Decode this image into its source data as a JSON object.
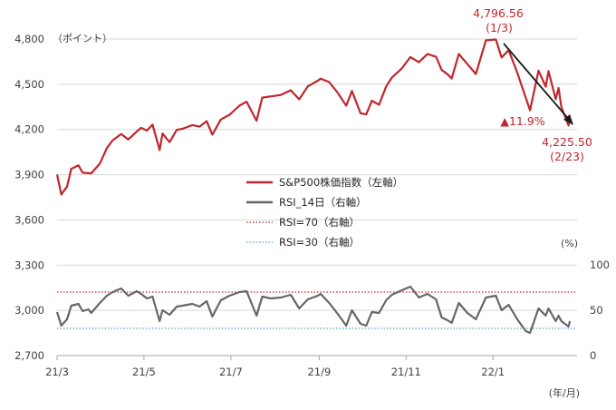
{
  "colors": {
    "sp500": "#c0262d",
    "rsi": "#666666",
    "rsi70": "#c0262d",
    "rsi30": "#4aa8c9",
    "grid": "#d9d9d9",
    "arrow": "#1a1a1a"
  },
  "chart_data": {
    "type": "line",
    "left_axis": {
      "unit_label": "（ポイント）",
      "ticks": [
        "4,800",
        "4,500",
        "4,200",
        "3,900",
        "3,600",
        "3,300",
        "3,000",
        "2,700"
      ],
      "range": [
        2700,
        4800
      ]
    },
    "right_axis": {
      "unit_label": "(%)",
      "ticks": [
        "100",
        "50",
        "0"
      ],
      "range": [
        0,
        100
      ]
    },
    "x_axis": {
      "ticks": [
        "21/3",
        "21/5",
        "21/7",
        "21/9",
        "21/11",
        "22/1"
      ],
      "unit_label": "(年/月)"
    },
    "legend": {
      "position": "center",
      "entries": [
        {
          "label": "S&P500株価指数（左軸）",
          "style": "solid-red"
        },
        {
          "label": "RSI_14日（右軸）",
          "style": "solid-gray"
        },
        {
          "label": "RSI=70（右軸）",
          "style": "dotted-red"
        },
        {
          "label": "RSI=30（右軸）",
          "style": "dotted-blue"
        }
      ]
    },
    "annotations": {
      "peak_value": "4,796.56",
      "peak_date": "(1/3)",
      "trough_value": "4,225.50",
      "trough_date": "(2/23)",
      "decline": "▲11.9%"
    },
    "reference_lines": [
      {
        "name": "RSI=70",
        "axis": "right",
        "value": 70
      },
      {
        "name": "RSI=30",
        "axis": "right",
        "value": 30
      }
    ],
    "series": [
      {
        "name": "S&P500株価指数",
        "axis": "left",
        "points": [
          [
            "2021-03-01",
            3901
          ],
          [
            "2021-03-04",
            3768
          ],
          [
            "2021-03-08",
            3821
          ],
          [
            "2021-03-11",
            3939
          ],
          [
            "2021-03-16",
            3962
          ],
          [
            "2021-03-19",
            3913
          ],
          [
            "2021-03-23",
            3910
          ],
          [
            "2021-03-25",
            3909
          ],
          [
            "2021-03-31",
            3973
          ],
          [
            "2021-04-05",
            4077
          ],
          [
            "2021-04-09",
            4128
          ],
          [
            "2021-04-15",
            4170
          ],
          [
            "2021-04-20",
            4134
          ],
          [
            "2021-04-26",
            4187
          ],
          [
            "2021-04-29",
            4211
          ],
          [
            "2021-05-03",
            4192
          ],
          [
            "2021-05-07",
            4232
          ],
          [
            "2021-05-12",
            4063
          ],
          [
            "2021-05-14",
            4173
          ],
          [
            "2021-05-19",
            4116
          ],
          [
            "2021-05-24",
            4197
          ],
          [
            "2021-05-28",
            4204
          ],
          [
            "2021-06-04",
            4229
          ],
          [
            "2021-06-09",
            4219
          ],
          [
            "2021-06-14",
            4255
          ],
          [
            "2021-06-18",
            4166
          ],
          [
            "2021-06-24",
            4266
          ],
          [
            "2021-06-30",
            4297
          ],
          [
            "2021-07-07",
            4358
          ],
          [
            "2021-07-12",
            4384
          ],
          [
            "2021-07-19",
            4258
          ],
          [
            "2021-07-23",
            4411
          ],
          [
            "2021-07-29",
            4419
          ],
          [
            "2021-08-05",
            4429
          ],
          [
            "2021-08-12",
            4460
          ],
          [
            "2021-08-18",
            4400
          ],
          [
            "2021-08-24",
            4486
          ],
          [
            "2021-08-31",
            4523
          ],
          [
            "2021-09-02",
            4537
          ],
          [
            "2021-09-08",
            4514
          ],
          [
            "2021-09-14",
            4443
          ],
          [
            "2021-09-20",
            4358
          ],
          [
            "2021-09-24",
            4455
          ],
          [
            "2021-09-30",
            4307
          ],
          [
            "2021-10-04",
            4300
          ],
          [
            "2021-10-08",
            4391
          ],
          [
            "2021-10-13",
            4363
          ],
          [
            "2021-10-18",
            4486
          ],
          [
            "2021-10-22",
            4544
          ],
          [
            "2021-10-29",
            4605
          ],
          [
            "2021-11-04",
            4680
          ],
          [
            "2021-11-10",
            4646
          ],
          [
            "2021-11-16",
            4700
          ],
          [
            "2021-11-22",
            4682
          ],
          [
            "2021-11-26",
            4594
          ],
          [
            "2021-11-30",
            4567
          ],
          [
            "2021-12-03",
            4538
          ],
          [
            "2021-12-08",
            4701
          ],
          [
            "2021-12-14",
            4634
          ],
          [
            "2021-12-20",
            4568
          ],
          [
            "2021-12-27",
            4791
          ],
          [
            "2022-01-03",
            4797
          ],
          [
            "2022-01-07",
            4677
          ],
          [
            "2022-01-12",
            4726
          ],
          [
            "2022-01-18",
            4577
          ],
          [
            "2022-01-24",
            4410
          ],
          [
            "2022-01-27",
            4327
          ],
          [
            "2022-02-02",
            4590
          ],
          [
            "2022-02-07",
            4484
          ],
          [
            "2022-02-09",
            4587
          ],
          [
            "2022-02-14",
            4401
          ],
          [
            "2022-02-16",
            4475
          ],
          [
            "2022-02-18",
            4349
          ],
          [
            "2022-02-23",
            4226
          ],
          [
            "2022-02-24",
            4288
          ]
        ]
      },
      {
        "name": "RSI_14日",
        "axis": "right",
        "points": [
          [
            "2021-03-01",
            48
          ],
          [
            "2021-03-04",
            33
          ],
          [
            "2021-03-08",
            40
          ],
          [
            "2021-03-11",
            55
          ],
          [
            "2021-03-16",
            57
          ],
          [
            "2021-03-19",
            49
          ],
          [
            "2021-03-23",
            51
          ],
          [
            "2021-03-25",
            47
          ],
          [
            "2021-03-31",
            58
          ],
          [
            "2021-04-05",
            66
          ],
          [
            "2021-04-09",
            70
          ],
          [
            "2021-04-15",
            74
          ],
          [
            "2021-04-20",
            66
          ],
          [
            "2021-04-26",
            71
          ],
          [
            "2021-04-29",
            68
          ],
          [
            "2021-05-03",
            63
          ],
          [
            "2021-05-07",
            65
          ],
          [
            "2021-05-12",
            38
          ],
          [
            "2021-05-14",
            50
          ],
          [
            "2021-05-19",
            45
          ],
          [
            "2021-05-24",
            54
          ],
          [
            "2021-05-28",
            55
          ],
          [
            "2021-06-04",
            57
          ],
          [
            "2021-06-09",
            54
          ],
          [
            "2021-06-14",
            60
          ],
          [
            "2021-06-18",
            43
          ],
          [
            "2021-06-24",
            61
          ],
          [
            "2021-06-30",
            66
          ],
          [
            "2021-07-07",
            70
          ],
          [
            "2021-07-12",
            71
          ],
          [
            "2021-07-19",
            44
          ],
          [
            "2021-07-23",
            65
          ],
          [
            "2021-07-29",
            63
          ],
          [
            "2021-08-05",
            64
          ],
          [
            "2021-08-12",
            67
          ],
          [
            "2021-08-18",
            52
          ],
          [
            "2021-08-24",
            62
          ],
          [
            "2021-08-31",
            66
          ],
          [
            "2021-09-02",
            68
          ],
          [
            "2021-09-08",
            58
          ],
          [
            "2021-09-14",
            46
          ],
          [
            "2021-09-20",
            33
          ],
          [
            "2021-09-24",
            50
          ],
          [
            "2021-09-30",
            35
          ],
          [
            "2021-10-04",
            33
          ],
          [
            "2021-10-08",
            48
          ],
          [
            "2021-10-13",
            47
          ],
          [
            "2021-10-18",
            61
          ],
          [
            "2021-10-22",
            67
          ],
          [
            "2021-10-29",
            72
          ],
          [
            "2021-11-04",
            76
          ],
          [
            "2021-11-10",
            64
          ],
          [
            "2021-11-16",
            68
          ],
          [
            "2021-11-22",
            62
          ],
          [
            "2021-11-26",
            42
          ],
          [
            "2021-11-30",
            39
          ],
          [
            "2021-12-03",
            36
          ],
          [
            "2021-12-08",
            58
          ],
          [
            "2021-12-14",
            47
          ],
          [
            "2021-12-20",
            40
          ],
          [
            "2021-12-27",
            64
          ],
          [
            "2022-01-03",
            66
          ],
          [
            "2022-01-07",
            50
          ],
          [
            "2022-01-12",
            56
          ],
          [
            "2022-01-18",
            40
          ],
          [
            "2022-01-24",
            27
          ],
          [
            "2022-01-27",
            25
          ],
          [
            "2022-02-02",
            52
          ],
          [
            "2022-02-07",
            44
          ],
          [
            "2022-02-09",
            52
          ],
          [
            "2022-02-14",
            38
          ],
          [
            "2022-02-16",
            44
          ],
          [
            "2022-02-18",
            38
          ],
          [
            "2022-02-23",
            32
          ],
          [
            "2022-02-24",
            38
          ]
        ]
      }
    ]
  }
}
